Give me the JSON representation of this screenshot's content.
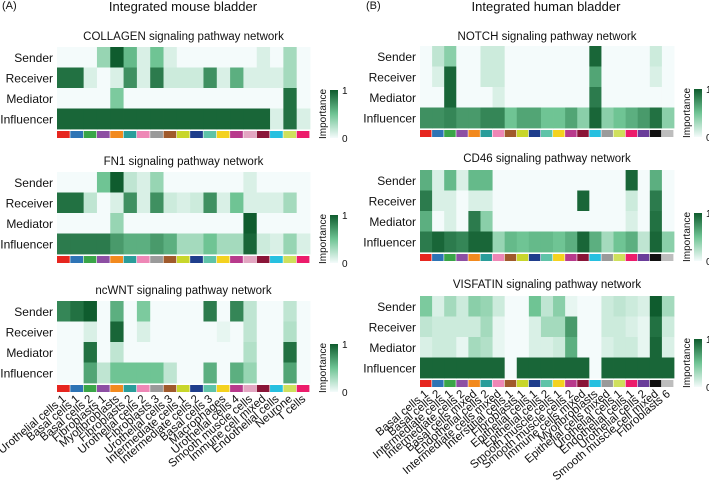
{
  "panel_a": {
    "tag": "(A)",
    "heading": "Integrated mouse bladder",
    "x_labels": [
      "Urothelial cells 1",
      "Basal cells 1",
      "Basal cells 2",
      "Fibroblasts 1",
      "Myofibroblasts",
      "Fibroblasts 2",
      "Urothelial cells 2",
      "Fibroblasts 3",
      "Urothelial cells 3",
      "Intermediate cells 1",
      "Intermediate cells 2",
      "Basal cells 3",
      "Macrophages",
      "Urothelial cells 4",
      "Smooth muscle cells",
      "Immune cell mixed",
      "Endothelial cells",
      "Neurone",
      "T cells"
    ],
    "color_strip": [
      "#e6261f",
      "#2e74b5",
      "#3aa548",
      "#8d4fa3",
      "#f28a1e",
      "#2a9d9a",
      "#ee87b6",
      "#9a9a9a",
      "#a05a2c",
      "#c8d62b",
      "#1f3e8c",
      "#5fc3a8",
      "#f4d21f",
      "#b83a8c",
      "#e3a6c2",
      "#8a1538",
      "#27c0e0",
      "#cfe05c",
      "#ec1c6b"
    ]
  },
  "panel_b": {
    "tag": "(B)",
    "heading": "Integrated human bladder",
    "x_labels": [
      "Basal cells 1",
      "Basal cells 2",
      "Intermediate cells 1",
      "Intermediate cells 2",
      "Basal cells mixed",
      "Endothelial cells 2",
      "Intermediate cells mixed",
      "Interstitial cells 1",
      "Fibroblasts 1",
      "Epithelial cells 1",
      "Epithelial cells 2",
      "Smooth muscle cells 1",
      "Smooth muscle cells 2",
      "Immune cells mixed",
      "Myofibroblasts",
      "Epithelial cells mixed",
      "Urothelial cells 1",
      "Endothelial cells 1",
      "Urothelial cells 2",
      "Smooth muscle cell mixed",
      "Fibroblasts 6"
    ],
    "color_strip": [
      "#e6261f",
      "#2e74b5",
      "#3aa548",
      "#8d4fa3",
      "#f28a1e",
      "#2a9d9a",
      "#ee87b6",
      "#a05a2c",
      "#c8d62b",
      "#1f3e8c",
      "#5fc3a8",
      "#f4d21f",
      "#b83a8c",
      "#8a1538",
      "#27c0e0",
      "#9a9a9a",
      "#cfe05c",
      "#ec1c6b",
      "#6a3d9a",
      "#111111",
      "#bdbdbd"
    ]
  },
  "legend": {
    "title": "Importance",
    "max_label": "1",
    "min_label": "0",
    "color_low": "#f4fbfb",
    "color_high": "#0f5c2e"
  },
  "chart_data": [
    {
      "type": "heatmap",
      "panel": "A",
      "title": "COLLAGEN signaling pathway network",
      "rows": [
        "Sender",
        "Receiver",
        "Mediator",
        "Influencer"
      ],
      "values": [
        [
          0,
          0,
          0,
          0.35,
          1.0,
          0.55,
          0.1,
          0.5,
          0.1,
          0,
          0,
          0,
          0,
          0,
          0,
          0.1,
          0,
          0.3,
          0
        ],
        [
          0.9,
          0.9,
          0.1,
          0,
          0.1,
          0.75,
          0.1,
          0.85,
          0.15,
          0.15,
          0.15,
          0.75,
          0.1,
          0.6,
          0.1,
          0.1,
          0.1,
          0.3,
          0
        ],
        [
          0,
          0,
          0,
          0,
          0.45,
          0,
          0,
          0,
          0,
          0,
          0,
          0,
          0,
          0,
          0,
          0,
          0,
          0.9,
          0
        ],
        [
          0.95,
          0.95,
          0.95,
          0.95,
          0.95,
          0.95,
          0.95,
          0.95,
          0.95,
          0.95,
          0.95,
          0.95,
          0.95,
          0.95,
          0.95,
          0.95,
          0.1,
          0.9,
          0.1
        ]
      ]
    },
    {
      "type": "heatmap",
      "panel": "A",
      "title": "FN1 signaling pathway network",
      "rows": [
        "Sender",
        "Receiver",
        "Mediator",
        "Influencer"
      ],
      "values": [
        [
          0,
          0,
          0,
          0.5,
          1.0,
          0.2,
          0.1,
          0.35,
          0,
          0,
          0,
          0,
          0,
          0,
          0.1,
          0,
          0,
          0,
          0
        ],
        [
          0.9,
          0.9,
          0.2,
          0,
          0.1,
          0.75,
          0.1,
          0.75,
          0.15,
          0.1,
          0.15,
          0.75,
          0.1,
          0.5,
          0.1,
          0.1,
          0.1,
          0.3,
          0
        ],
        [
          0,
          0,
          0,
          0,
          0.35,
          0,
          0,
          0,
          0,
          0,
          0,
          0,
          0,
          0,
          1.0,
          0,
          0,
          0,
          0
        ],
        [
          0.85,
          0.85,
          0.85,
          0.85,
          0.7,
          0.6,
          0.6,
          0.7,
          0.6,
          0.3,
          0.3,
          0.5,
          0.3,
          0.3,
          0.95,
          0.15,
          0.1,
          0.35,
          0.1
        ]
      ]
    },
    {
      "type": "heatmap",
      "panel": "A",
      "title": "ncWNT signaling pathway network",
      "rows": [
        "Sender",
        "Receiver",
        "Mediator",
        "Influencer"
      ],
      "values": [
        [
          0.8,
          0.9,
          1.0,
          0,
          0.6,
          0,
          0.45,
          0,
          0,
          0,
          0,
          0.85,
          0,
          0.8,
          0.2,
          0,
          0,
          0.2,
          0
        ],
        [
          0,
          0,
          0.1,
          0,
          0.95,
          0,
          0.1,
          0,
          0,
          0,
          0,
          0,
          0.05,
          0,
          0.2,
          0,
          0,
          0.25,
          0
        ],
        [
          0,
          0,
          0.9,
          0,
          0.2,
          0,
          0,
          0,
          0,
          0,
          0,
          0,
          0,
          0,
          0.25,
          0,
          0,
          0.9,
          0
        ],
        [
          0,
          0,
          0.65,
          0.2,
          0.5,
          0.5,
          0.5,
          0.5,
          0.2,
          0,
          0,
          0.6,
          0,
          0.6,
          0.35,
          0,
          0,
          0.65,
          0
        ]
      ]
    },
    {
      "type": "heatmap",
      "panel": "B",
      "title": "NOTCH signaling pathway network",
      "rows": [
        "Sender",
        "Receiver",
        "Mediator",
        "Influencer"
      ],
      "values": [
        [
          0,
          0.2,
          0.4,
          0,
          0,
          0.15,
          0.15,
          0,
          0,
          0,
          0,
          0,
          0,
          0,
          0.95,
          0,
          0,
          0,
          0,
          0.15,
          0
        ],
        [
          0,
          0.1,
          0.95,
          0,
          0,
          0.15,
          0.15,
          0,
          0,
          0,
          0,
          0,
          0,
          0,
          0.65,
          0,
          0,
          0,
          0,
          0.1,
          0
        ],
        [
          0,
          0,
          0.95,
          0,
          0,
          0,
          0.1,
          0,
          0,
          0,
          0,
          0,
          0,
          0,
          0.85,
          0,
          0,
          0,
          0,
          0,
          0
        ],
        [
          0.75,
          0.75,
          0.8,
          0.7,
          0.7,
          0.8,
          0.8,
          0.5,
          0.65,
          0.65,
          0.5,
          0.5,
          0.65,
          0.4,
          0.95,
          0.4,
          0.5,
          0.6,
          0.7,
          0.9,
          0.4
        ]
      ]
    },
    {
      "type": "heatmap",
      "panel": "B",
      "title": "CD46 signaling pathway network",
      "rows": [
        "Sender",
        "Receiver",
        "Mediator",
        "Influencer"
      ],
      "values": [
        [
          0.6,
          0.1,
          0.55,
          0.1,
          0.55,
          0.55,
          0,
          0,
          0,
          0,
          0,
          0,
          0,
          0,
          0,
          0,
          0,
          0.95,
          0,
          0.6,
          0
        ],
        [
          0.85,
          0.1,
          0.1,
          0,
          0.1,
          0.1,
          0,
          0,
          0,
          0,
          0,
          0,
          0,
          0.95,
          0,
          0,
          0,
          0.15,
          0,
          0.85,
          0
        ],
        [
          0.6,
          0,
          0.1,
          0,
          0.85,
          0.4,
          0,
          0,
          0,
          0,
          0,
          0,
          0,
          0,
          0,
          0,
          0,
          0.1,
          0,
          0.9,
          0
        ],
        [
          0.85,
          0.95,
          0.85,
          0.8,
          0.95,
          0.95,
          0.35,
          0.55,
          0.5,
          0.55,
          0.55,
          0.5,
          0.6,
          0.95,
          0.6,
          0.3,
          0.5,
          0.6,
          0.2,
          0.95,
          0.4
        ]
      ]
    },
    {
      "type": "heatmap",
      "panel": "B",
      "title": "VISFATIN signaling pathway network",
      "rows": [
        "Sender",
        "Receiver",
        "Mediator",
        "Influencer"
      ],
      "values": [
        [
          0.45,
          0.1,
          0.3,
          0.15,
          0.4,
          0.35,
          0.15,
          0,
          0,
          0.5,
          0.2,
          0.4,
          0.05,
          0,
          0,
          0.15,
          0.2,
          0.15,
          0.1,
          1.0,
          0.3
        ],
        [
          0.2,
          0.15,
          0.15,
          0.15,
          0.15,
          0.3,
          0.05,
          0,
          0,
          0.1,
          0.3,
          0.3,
          0.7,
          0,
          0,
          0.15,
          0.15,
          0.1,
          0.05,
          0.9,
          0.15
        ],
        [
          0.1,
          0.15,
          0.15,
          0.05,
          0.3,
          0.25,
          0.05,
          0,
          0,
          0.1,
          0.1,
          0.15,
          0.6,
          0,
          0,
          0.1,
          0.15,
          0.15,
          0.05,
          0.95,
          0.1
        ],
        [
          0.95,
          0.95,
          0.95,
          0.95,
          0.95,
          0.95,
          0.95,
          0,
          0.95,
          0.95,
          0.95,
          0.95,
          0.95,
          0.95,
          0,
          0.95,
          0.95,
          0.95,
          0.95,
          0.95,
          0.95
        ]
      ]
    }
  ]
}
